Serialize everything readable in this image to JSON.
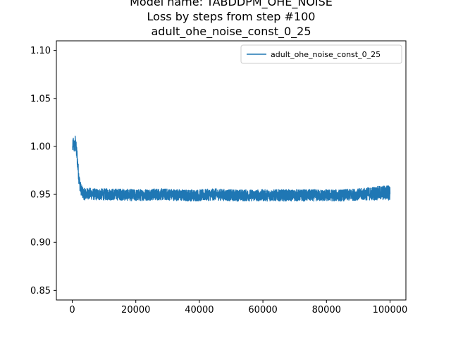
{
  "chart_data": {
    "type": "line",
    "title_lines": [
      "Model name: TABDDPM_OHE_NOISE",
      "Loss by steps from step #100",
      "adult_ohe_noise_const_0_25"
    ],
    "xlabel": "",
    "ylabel": "",
    "xlim": [
      -5000,
      105000
    ],
    "ylim": [
      0.84,
      1.11
    ],
    "x_ticks": [
      {
        "value": 0,
        "label": "0"
      },
      {
        "value": 20000,
        "label": "20000"
      },
      {
        "value": 40000,
        "label": "40000"
      },
      {
        "value": 60000,
        "label": "60000"
      },
      {
        "value": 80000,
        "label": "80000"
      },
      {
        "value": 100000,
        "label": "100000"
      }
    ],
    "y_ticks": [
      {
        "value": 0.85,
        "label": "0.85"
      },
      {
        "value": 0.9,
        "label": "0.90"
      },
      {
        "value": 0.95,
        "label": "0.95"
      },
      {
        "value": 1.0,
        "label": "1.00"
      },
      {
        "value": 1.05,
        "label": "1.05"
      },
      {
        "value": 1.1,
        "label": "1.10"
      }
    ],
    "grid": false,
    "legend_position": "top-right",
    "series": [
      {
        "name": "adult_ohe_noise_const_0_25",
        "color": "#1f77b4",
        "points": [
          [
            100,
            0.998
          ],
          [
            300,
            1.004
          ],
          [
            600,
            0.999
          ],
          [
            900,
            1.005
          ],
          [
            1200,
            0.998
          ],
          [
            1500,
            0.99
          ],
          [
            1800,
            0.978
          ],
          [
            2100,
            0.967
          ],
          [
            2400,
            0.96
          ],
          [
            2700,
            0.956
          ],
          [
            3000,
            0.953
          ],
          [
            3500,
            0.951
          ],
          [
            4000,
            0.95
          ],
          [
            5000,
            0.951
          ],
          [
            7000,
            0.95
          ],
          [
            10000,
            0.95
          ],
          [
            15000,
            0.95
          ],
          [
            20000,
            0.949
          ],
          [
            25000,
            0.95
          ],
          [
            30000,
            0.95
          ],
          [
            35000,
            0.949
          ],
          [
            40000,
            0.949
          ],
          [
            45000,
            0.95
          ],
          [
            50000,
            0.949
          ],
          [
            55000,
            0.949
          ],
          [
            60000,
            0.949
          ],
          [
            65000,
            0.949
          ],
          [
            70000,
            0.949
          ],
          [
            75000,
            0.949
          ],
          [
            80000,
            0.949
          ],
          [
            85000,
            0.949
          ],
          [
            90000,
            0.95
          ],
          [
            95000,
            0.951
          ],
          [
            100000,
            0.952
          ]
        ],
        "noise_band": [
          [
            100,
            0.006
          ],
          [
            1500,
            0.008
          ],
          [
            2500,
            0.006
          ],
          [
            3000,
            0.006
          ],
          [
            5000,
            0.006
          ],
          [
            20000,
            0.006
          ],
          [
            40000,
            0.006
          ],
          [
            60000,
            0.006
          ],
          [
            80000,
            0.006
          ],
          [
            90000,
            0.006
          ],
          [
            95000,
            0.007
          ],
          [
            100000,
            0.008
          ]
        ]
      }
    ]
  }
}
